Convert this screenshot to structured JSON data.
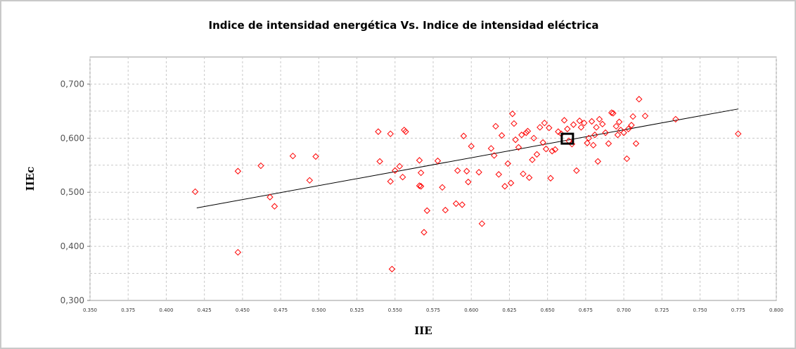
{
  "chart_data": {
    "type": "scatter",
    "title": "Indice de intensidad energética Vs. Indice de intensidad eléctrica",
    "xlabel": "IIE",
    "ylabel": "IIEc",
    "xlim": [
      0.35,
      0.8
    ],
    "ylim": [
      0.3,
      0.75
    ],
    "x_ticks": [
      "0.350",
      "0.375",
      "0.400",
      "0.425",
      "0.450",
      "0.475",
      "0.500",
      "0.525",
      "0.550",
      "0.575",
      "0.600",
      "0.625",
      "0.650",
      "0.675",
      "0.700",
      "0.725",
      "0.750",
      "0.775",
      "0.800"
    ],
    "y_ticks": [
      "0,300",
      "0,400",
      "0,500",
      "0,600",
      "0,700"
    ],
    "grid": true,
    "marker_color": "#ff0000",
    "trend_color": "#000000",
    "series": [
      {
        "marker": "diamond-open",
        "x": [
          0.419,
          0.447,
          0.447,
          0.462,
          0.468,
          0.471,
          0.483,
          0.494,
          0.498,
          0.539,
          0.54,
          0.547,
          0.547,
          0.548,
          0.55,
          0.553,
          0.555,
          0.556,
          0.557,
          0.566,
          0.566,
          0.567,
          0.567,
          0.569,
          0.571,
          0.578,
          0.581,
          0.583,
          0.59,
          0.591,
          0.594,
          0.595,
          0.597,
          0.598,
          0.6,
          0.605,
          0.607,
          0.613,
          0.615,
          0.616,
          0.618,
          0.62,
          0.622,
          0.624,
          0.626,
          0.627,
          0.628,
          0.629,
          0.631,
          0.633,
          0.634,
          0.636,
          0.637,
          0.638,
          0.64,
          0.641,
          0.643,
          0.645,
          0.647,
          0.648,
          0.649,
          0.651,
          0.652,
          0.653,
          0.655,
          0.657,
          0.659,
          0.661,
          0.663,
          0.664,
          0.666,
          0.667,
          0.669,
          0.671,
          0.672,
          0.674,
          0.676,
          0.677,
          0.679,
          0.68,
          0.681,
          0.682,
          0.683,
          0.684,
          0.686,
          0.688,
          0.69,
          0.692,
          0.693,
          0.695,
          0.696,
          0.697,
          0.698,
          0.7,
          0.702,
          0.703,
          0.705,
          0.706,
          0.708,
          0.71,
          0.714,
          0.734,
          0.775
        ],
        "y": [
          0.501,
          0.389,
          0.539,
          0.549,
          0.491,
          0.474,
          0.567,
          0.522,
          0.566,
          0.612,
          0.557,
          0.608,
          0.52,
          0.358,
          0.54,
          0.548,
          0.528,
          0.615,
          0.612,
          0.512,
          0.559,
          0.536,
          0.511,
          0.426,
          0.466,
          0.558,
          0.509,
          0.467,
          0.479,
          0.54,
          0.477,
          0.604,
          0.539,
          0.519,
          0.585,
          0.537,
          0.442,
          0.581,
          0.568,
          0.622,
          0.533,
          0.605,
          0.511,
          0.553,
          0.517,
          0.645,
          0.627,
          0.597,
          0.583,
          0.606,
          0.534,
          0.61,
          0.613,
          0.527,
          0.56,
          0.6,
          0.57,
          0.62,
          0.592,
          0.628,
          0.58,
          0.619,
          0.526,
          0.576,
          0.579,
          0.612,
          0.608,
          0.633,
          0.617,
          0.595,
          0.589,
          0.625,
          0.54,
          0.632,
          0.62,
          0.628,
          0.591,
          0.6,
          0.631,
          0.587,
          0.606,
          0.62,
          0.557,
          0.635,
          0.626,
          0.61,
          0.59,
          0.647,
          0.646,
          0.622,
          0.606,
          0.63,
          0.615,
          0.61,
          0.562,
          0.617,
          0.624,
          0.64,
          0.59,
          0.672,
          0.641,
          0.635,
          0.608
        ]
      }
    ],
    "trendline": {
      "x": [
        0.42,
        0.775
      ],
      "y": [
        0.471,
        0.654
      ]
    },
    "highlight": {
      "x": 0.663,
      "y": 0.599
    }
  }
}
